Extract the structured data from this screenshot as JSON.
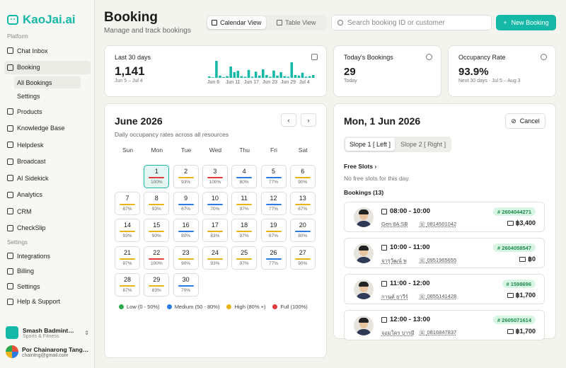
{
  "sidebar": {
    "app_name": "KaoJai.ai",
    "sections": {
      "platform": "Platform",
      "settings": "Settings"
    },
    "items": [
      {
        "label": "Chat Inbox",
        "icon": "inbox-icon"
      },
      {
        "label": "Booking",
        "icon": "calendar-icon",
        "active": true
      },
      {
        "label": "Products",
        "icon": "box-icon"
      },
      {
        "label": "Knowledge Base",
        "icon": "book-icon"
      },
      {
        "label": "Helpdesk",
        "icon": "help-icon"
      },
      {
        "label": "Broadcast",
        "icon": "broadcast-icon"
      },
      {
        "label": "AI Sidekick",
        "icon": "sparkle-icon"
      },
      {
        "label": "Analytics",
        "icon": "chart-icon"
      },
      {
        "label": "CRM",
        "icon": "crm-icon"
      },
      {
        "label": "CheckSlip",
        "icon": "receipt-icon"
      }
    ],
    "subitems": [
      {
        "label": "All Bookings",
        "active": true
      },
      {
        "label": "Settings"
      }
    ],
    "settings_items": [
      {
        "label": "Integrations",
        "icon": "plug-icon"
      },
      {
        "label": "Billing",
        "icon": "card-icon"
      },
      {
        "label": "Settings",
        "icon": "gear-icon"
      },
      {
        "label": "Help & Support",
        "icon": "support-icon"
      }
    ],
    "org": {
      "name": "Smash Badmint…",
      "type": "Sports & Fitness"
    },
    "user": {
      "name": "Por Chainarong Tang…",
      "email": "chaintng@gmail.com"
    }
  },
  "header": {
    "title": "Booking",
    "subtitle": "Manage and track bookings",
    "calendar_view": "Calendar View",
    "table_view": "Table View",
    "search_placeholder": "Search booking ID or customer",
    "new_booking": "New Booking"
  },
  "stats": {
    "last30": {
      "label": "Last 30 days",
      "value": "1,141",
      "range": "Jun 5 – Jul 4",
      "x_labels": [
        "Jun 6",
        "Jun 11",
        "Jun 17",
        "Jun 23",
        "Jun 29",
        "Jul 4"
      ],
      "bars": [
        5,
        2,
        60,
        8,
        3,
        6,
        40,
        20,
        25,
        6,
        4,
        28,
        4,
        22,
        8,
        30,
        10,
        4,
        26,
        8,
        20,
        6,
        4,
        55,
        10,
        8,
        18,
        4,
        6,
        10
      ]
    },
    "today": {
      "label": "Today's Bookings",
      "value": "29",
      "sub": "Today"
    },
    "occupancy": {
      "label": "Occupancy Rate",
      "value": "93.9%",
      "sub": "Next 30 days · Jul 5 – Aug 3"
    }
  },
  "calendar": {
    "title": "June 2026",
    "subtitle": "Daily occupancy rates across all resources",
    "weekdays": [
      "Sun",
      "Mon",
      "Tue",
      "Wed",
      "Thu",
      "Fri",
      "Sat"
    ],
    "days": [
      {
        "n": "1",
        "p": "100%",
        "lvl": "full"
      },
      {
        "n": "2",
        "p": "93%",
        "lvl": "high"
      },
      {
        "n": "3",
        "p": "100%",
        "lvl": "full"
      },
      {
        "n": "4",
        "p": "80%",
        "lvl": "medium"
      },
      {
        "n": "5",
        "p": "77%",
        "lvl": "medium"
      },
      {
        "n": "6",
        "p": "90%",
        "lvl": "high"
      },
      {
        "n": "7",
        "p": "87%",
        "lvl": "high"
      },
      {
        "n": "8",
        "p": "93%",
        "lvl": "high"
      },
      {
        "n": "9",
        "p": "67%",
        "lvl": "medium"
      },
      {
        "n": "10",
        "p": "70%",
        "lvl": "medium"
      },
      {
        "n": "11",
        "p": "97%",
        "lvl": "high"
      },
      {
        "n": "12",
        "p": "77%",
        "lvl": "medium"
      },
      {
        "n": "13",
        "p": "87%",
        "lvl": "high"
      },
      {
        "n": "14",
        "p": "93%",
        "lvl": "high"
      },
      {
        "n": "15",
        "p": "90%",
        "lvl": "high"
      },
      {
        "n": "16",
        "p": "80%",
        "lvl": "medium"
      },
      {
        "n": "17",
        "p": "83%",
        "lvl": "high"
      },
      {
        "n": "18",
        "p": "97%",
        "lvl": "high"
      },
      {
        "n": "19",
        "p": "87%",
        "lvl": "high"
      },
      {
        "n": "20",
        "p": "80%",
        "lvl": "medium"
      },
      {
        "n": "21",
        "p": "97%",
        "lvl": "high"
      },
      {
        "n": "22",
        "p": "100%",
        "lvl": "full"
      },
      {
        "n": "23",
        "p": "90%",
        "lvl": "high"
      },
      {
        "n": "24",
        "p": "93%",
        "lvl": "high"
      },
      {
        "n": "25",
        "p": "97%",
        "lvl": "high"
      },
      {
        "n": "26",
        "p": "77%",
        "lvl": "medium"
      },
      {
        "n": "27",
        "p": "90%",
        "lvl": "high"
      },
      {
        "n": "28",
        "p": "87%",
        "lvl": "high"
      },
      {
        "n": "29",
        "p": "83%",
        "lvl": "high"
      },
      {
        "n": "30",
        "p": "70%",
        "lvl": "medium"
      }
    ],
    "legend": [
      {
        "label": "Low (0 - 50%)",
        "color": "#2ea84d"
      },
      {
        "label": "Medium (50 - 80%)",
        "color": "#2b7be4"
      },
      {
        "label": "High (80% +)",
        "color": "#e7b416"
      },
      {
        "label": "Full (100%)",
        "color": "#e23a3a"
      }
    ]
  },
  "detail": {
    "title": "Mon, 1 Jun 2026",
    "cancel": "Cancel",
    "slopes": [
      "Slope 1 [ Left ]",
      "Slope 2 [ Right ]"
    ],
    "free_slots_label": "Free Slots",
    "free_slots_empty": "No free slots for this day.",
    "bookings_label": "Bookings (13)",
    "bookings": [
      {
        "time": "08:00 - 10:00",
        "name": "Gen 8A:SB",
        "phone": "0814501042",
        "id": "# 2604044271",
        "price": "฿3,400"
      },
      {
        "time": "10:00 - 11:00",
        "name": "จารุวัฒน์ พ",
        "phone": "0951965655",
        "id": "# 2604058547",
        "price": "฿0"
      },
      {
        "time": "11:00 - 12:00",
        "name": "กานต์ ยาวีร์",
        "phone": "0855141428",
        "id": "# 1598696",
        "price": "฿1,700"
      },
      {
        "time": "12:00 - 13:00",
        "name": "จอมใคร บารมี",
        "phone": "0816847837",
        "id": "# 2605071614",
        "price": "฿1,700"
      }
    ]
  }
}
